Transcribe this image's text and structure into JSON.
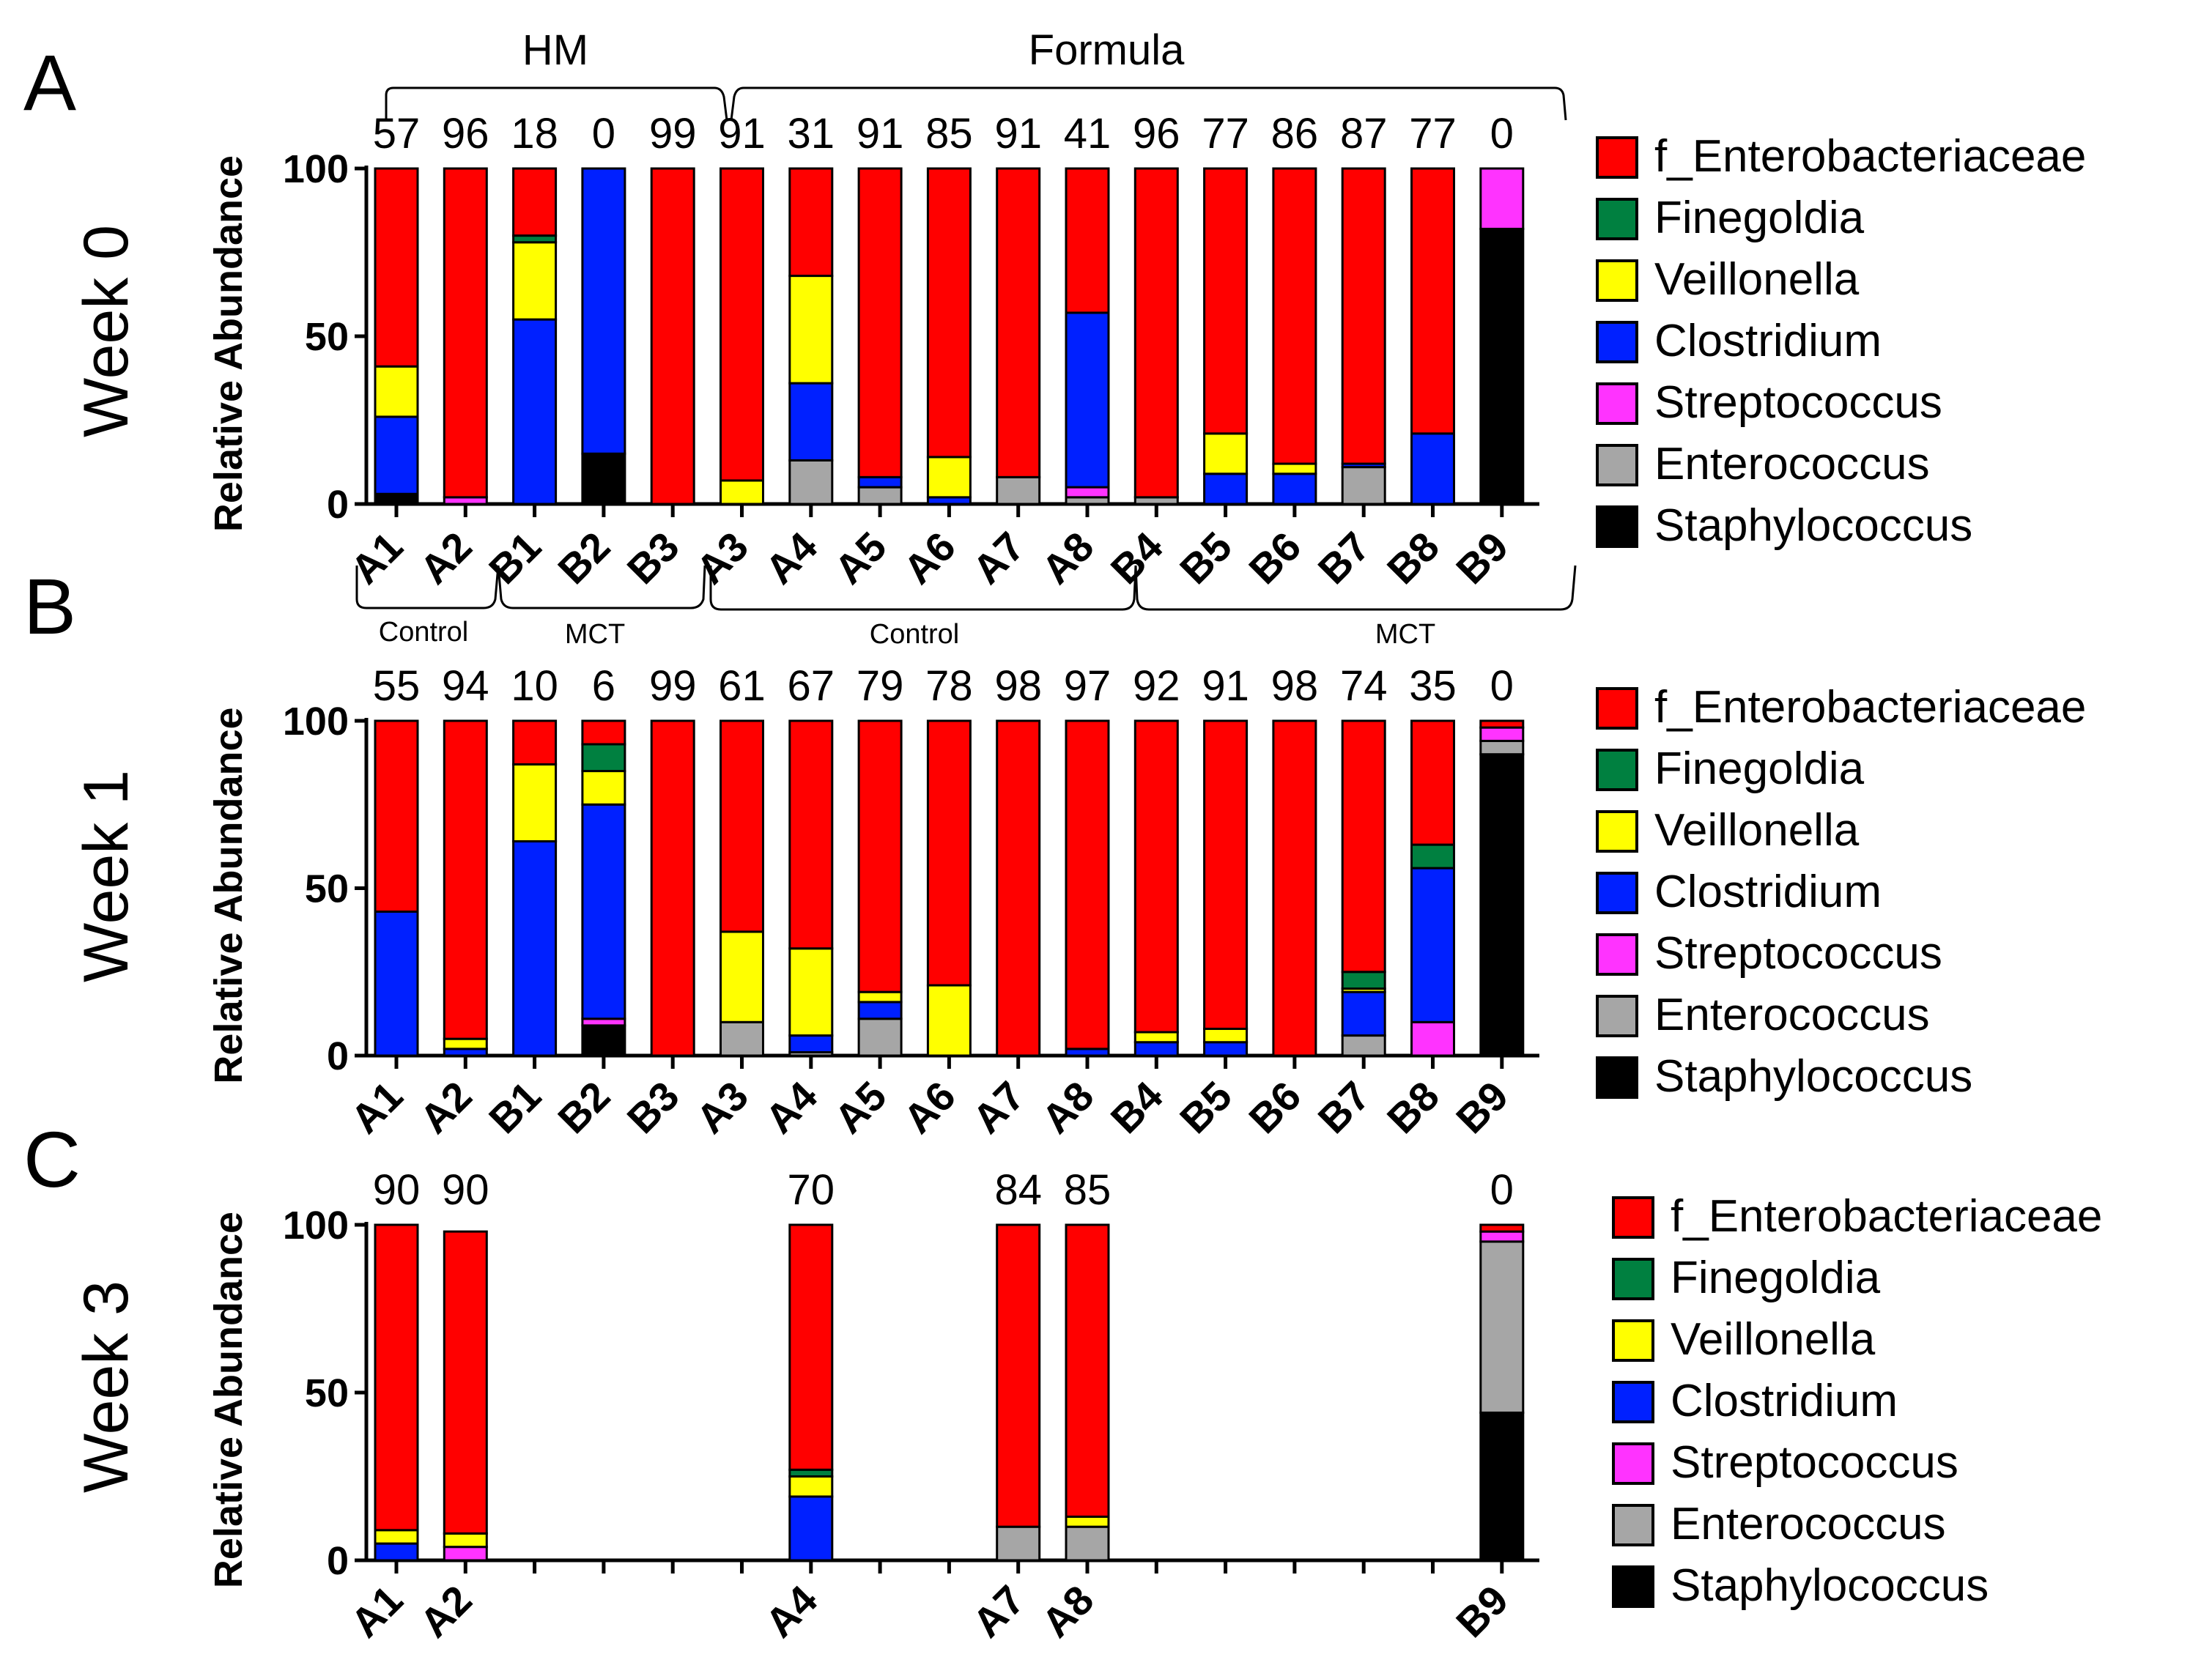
{
  "figure": {
    "top_groups": [
      "HM",
      "Formula"
    ],
    "sub_groups": [
      "Control",
      "MCT",
      "Control",
      "MCT"
    ]
  },
  "colors": {
    "f_Enterobacteriaceae": "#ff0000",
    "Finegoldia": "#008040",
    "Veillonella": "#ffff00",
    "Clostridium": "#0020ff",
    "Streptococcus": "#ff33ff",
    "Enterococcus": "#a6a6a6",
    "Staphylococcus": "#000000"
  },
  "chart_data": [
    {
      "type": "bar",
      "stacked": true,
      "panel": "A",
      "title": "Week 0",
      "ylabel": "Relative Abundance",
      "ylim": [
        0,
        100
      ],
      "yticks": [
        0,
        50,
        100
      ],
      "categories": [
        "A1",
        "A2",
        "B1",
        "B2",
        "B3",
        "A3",
        "A4",
        "A5",
        "A6",
        "A7",
        "A8",
        "B4",
        "B5",
        "B6",
        "B7",
        "B8",
        "B9"
      ],
      "top_labels": [
        "57",
        "96",
        "18",
        "0",
        "99",
        "91",
        "31",
        "91",
        "85",
        "91",
        "41",
        "96",
        "77",
        "86",
        "87",
        "77",
        "0"
      ],
      "legend": [
        "f_Enterobacteriaceae",
        "Finegoldia",
        "Veillonella",
        "Clostridium",
        "Streptococcus",
        "Enterococcus",
        "Staphylococcus"
      ],
      "series": [
        {
          "name": "Staphylococcus",
          "values": [
            3,
            0,
            0,
            15,
            0,
            0,
            0,
            0,
            0,
            0,
            0,
            0,
            0,
            0,
            0,
            0,
            82
          ]
        },
        {
          "name": "Enterococcus",
          "values": [
            0,
            0,
            0,
            0,
            0,
            0,
            13,
            5,
            0,
            8,
            2,
            2,
            0,
            0,
            11,
            0,
            0
          ]
        },
        {
          "name": "Streptococcus",
          "values": [
            0,
            2,
            0,
            0,
            0,
            0,
            0,
            0,
            0,
            0,
            3,
            0,
            0,
            0,
            0,
            0,
            18
          ]
        },
        {
          "name": "Clostridium",
          "values": [
            23,
            0,
            55,
            85,
            0,
            0,
            23,
            3,
            2,
            0,
            52,
            0,
            9,
            9,
            1,
            21,
            0
          ]
        },
        {
          "name": "Veillonella",
          "values": [
            15,
            0,
            23,
            0,
            0,
            7,
            32,
            0,
            12,
            0,
            0,
            0,
            12,
            3,
            0,
            0,
            0
          ]
        },
        {
          "name": "Finegoldia",
          "values": [
            0,
            0,
            2,
            0,
            0,
            0,
            0,
            0,
            0,
            0,
            0,
            0,
            0,
            0,
            0,
            0,
            0
          ]
        },
        {
          "name": "f_Enterobacteriaceae",
          "values": [
            59,
            98,
            20,
            0,
            100,
            93,
            32,
            92,
            86,
            92,
            43,
            98,
            79,
            88,
            88,
            79,
            0
          ]
        }
      ]
    },
    {
      "type": "bar",
      "stacked": true,
      "panel": "B",
      "title": "Week 1",
      "ylabel": "Relative Abundance",
      "ylim": [
        0,
        100
      ],
      "yticks": [
        0,
        50,
        100
      ],
      "categories": [
        "A1",
        "A2",
        "B1",
        "B2",
        "B3",
        "A3",
        "A4",
        "A5",
        "A6",
        "A7",
        "A8",
        "B4",
        "B5",
        "B6",
        "B7",
        "B8",
        "B9"
      ],
      "top_labels": [
        "55",
        "94",
        "10",
        "6",
        "99",
        "61",
        "67",
        "79",
        "78",
        "98",
        "97",
        "92",
        "91",
        "98",
        "74",
        "35",
        "0"
      ],
      "legend": [
        "f_Enterobacteriaceae",
        "Finegoldia",
        "Veillonella",
        "Clostridium",
        "Streptococcus",
        "Enterococcus",
        "Staphylococcus"
      ],
      "series": [
        {
          "name": "Staphylococcus",
          "values": [
            0,
            0,
            0,
            9,
            0,
            0,
            0,
            0,
            0,
            0,
            0,
            0,
            0,
            0,
            0,
            0,
            90
          ]
        },
        {
          "name": "Enterococcus",
          "values": [
            0,
            0,
            0,
            0,
            0,
            10,
            1,
            11,
            0,
            0,
            0,
            0,
            0,
            0,
            6,
            0,
            4
          ]
        },
        {
          "name": "Streptococcus",
          "values": [
            0,
            0,
            0,
            2,
            0,
            0,
            0,
            0,
            0,
            0,
            0,
            0,
            0,
            0,
            0,
            10,
            4
          ]
        },
        {
          "name": "Clostridium",
          "values": [
            43,
            2,
            64,
            64,
            0,
            0,
            5,
            5,
            0,
            0,
            2,
            4,
            4,
            0,
            13,
            46,
            0
          ]
        },
        {
          "name": "Veillonella",
          "values": [
            0,
            3,
            23,
            10,
            0,
            27,
            26,
            3,
            21,
            0,
            0,
            3,
            4,
            0,
            1,
            0,
            0
          ]
        },
        {
          "name": "Finegoldia",
          "values": [
            0,
            0,
            0,
            8,
            0,
            0,
            0,
            0,
            0,
            0,
            0,
            0,
            0,
            0,
            5,
            7,
            0
          ]
        },
        {
          "name": "f_Enterobacteriaceae",
          "values": [
            57,
            95,
            13,
            7,
            100,
            63,
            68,
            81,
            79,
            100,
            98,
            93,
            92,
            100,
            75,
            37,
            2
          ]
        }
      ]
    },
    {
      "type": "bar",
      "stacked": true,
      "panel": "C",
      "title": "Week 3",
      "ylabel": "Relative Abundance",
      "ylim": [
        0,
        100
      ],
      "yticks": [
        0,
        50,
        100
      ],
      "categories": [
        "A1",
        "A2",
        "",
        "",
        "",
        "",
        "A4",
        "",
        "",
        "A7",
        "A8",
        "",
        "",
        "",
        "",
        "",
        "B9"
      ],
      "top_labels": [
        "90",
        "90",
        "",
        "",
        "",
        "",
        "70",
        "",
        "",
        "84",
        "85",
        "",
        "",
        "",
        "",
        "",
        "0"
      ],
      "legend": [
        "f_Enterobacteriaceae",
        "Finegoldia",
        "Veillonella",
        "Clostridium",
        "Streptococcus",
        "Enterococcus",
        "Staphylococcus"
      ],
      "series": [
        {
          "name": "Staphylococcus",
          "values": [
            0,
            0,
            0,
            0,
            0,
            0,
            0,
            0,
            0,
            0,
            0,
            0,
            0,
            0,
            0,
            0,
            44
          ]
        },
        {
          "name": "Enterococcus",
          "values": [
            0,
            0,
            0,
            0,
            0,
            0,
            0,
            0,
            0,
            10,
            10,
            0,
            0,
            0,
            0,
            0,
            51
          ]
        },
        {
          "name": "Streptococcus",
          "values": [
            0,
            4,
            0,
            0,
            0,
            0,
            0,
            0,
            0,
            0,
            0,
            0,
            0,
            0,
            0,
            0,
            3
          ]
        },
        {
          "name": "Clostridium",
          "values": [
            5,
            0,
            0,
            0,
            0,
            0,
            19,
            0,
            0,
            0,
            0,
            0,
            0,
            0,
            0,
            0,
            0
          ]
        },
        {
          "name": "Veillonella",
          "values": [
            4,
            4,
            0,
            0,
            0,
            0,
            6,
            0,
            0,
            0,
            3,
            0,
            0,
            0,
            0,
            0,
            0
          ]
        },
        {
          "name": "Finegoldia",
          "values": [
            0,
            0,
            0,
            0,
            0,
            0,
            2,
            0,
            0,
            0,
            0,
            0,
            0,
            0,
            0,
            0,
            0
          ]
        },
        {
          "name": "f_Enterobacteriaceae",
          "values": [
            91,
            90,
            0,
            0,
            0,
            0,
            73,
            0,
            0,
            90,
            87,
            0,
            0,
            0,
            0,
            0,
            2
          ]
        }
      ]
    }
  ]
}
